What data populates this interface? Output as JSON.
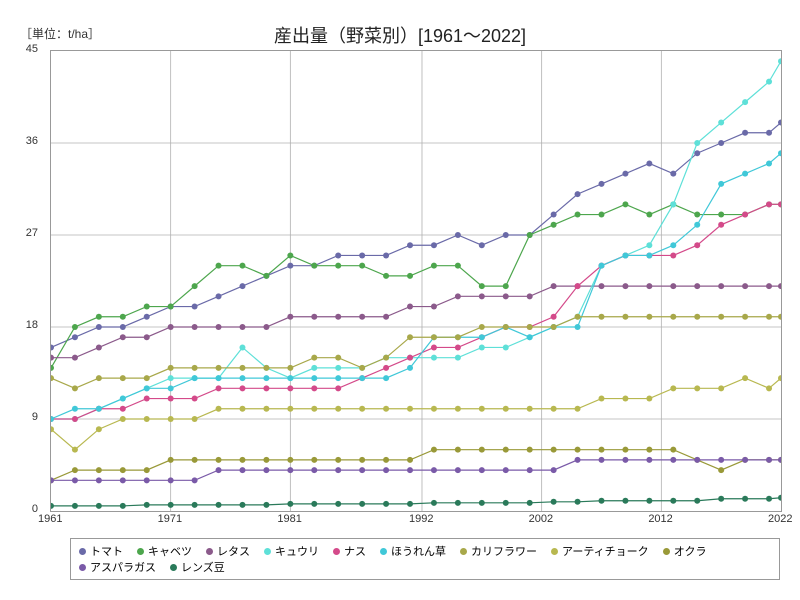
{
  "unit_label": "［単位：t/ha］",
  "title": "産出量（野菜別）[1961～2022]",
  "chart": {
    "type": "line",
    "background_color": "#ffffff",
    "grid_color": "#b0b0b0",
    "border_color": "#999999",
    "xlim": [
      1961,
      2022
    ],
    "ylim": [
      0,
      45
    ],
    "ytick_step": 9,
    "yticks": [
      0,
      9,
      18,
      27,
      36,
      45
    ],
    "xticks": [
      1961,
      1971,
      1981,
      1992,
      2002,
      2012,
      2022
    ],
    "title_fontsize": 18,
    "label_fontsize": 11,
    "marker_size": 3,
    "line_width": 1.2
  },
  "series": [
    {
      "name": "トマト",
      "color": "#6a6aa8",
      "years": [
        1961,
        1963,
        1965,
        1967,
        1969,
        1971,
        1973,
        1975,
        1977,
        1979,
        1981,
        1983,
        1985,
        1987,
        1989,
        1991,
        1993,
        1995,
        1997,
        1999,
        2001,
        2003,
        2005,
        2007,
        2009,
        2011,
        2013,
        2015,
        2017,
        2019,
        2021,
        2022
      ],
      "values": [
        16,
        17,
        18,
        18,
        19,
        20,
        20,
        21,
        22,
        23,
        24,
        24,
        25,
        25,
        25,
        26,
        26,
        27,
        26,
        27,
        27,
        29,
        31,
        32,
        33,
        34,
        33,
        35,
        36,
        37,
        37,
        38
      ]
    },
    {
      "name": "キャベツ",
      "color": "#4da64d",
      "years": [
        1961,
        1963,
        1965,
        1967,
        1969,
        1971,
        1973,
        1975,
        1977,
        1979,
        1981,
        1983,
        1985,
        1987,
        1989,
        1991,
        1993,
        1995,
        1997,
        1999,
        2001,
        2003,
        2005,
        2007,
        2009,
        2011,
        2013,
        2015,
        2017,
        2019,
        2021,
        2022
      ],
      "values": [
        14,
        18,
        19,
        19,
        20,
        20,
        22,
        24,
        24,
        23,
        25,
        24,
        24,
        24,
        23,
        23,
        24,
        24,
        22,
        22,
        27,
        28,
        29,
        29,
        30,
        29,
        30,
        29,
        29,
        29,
        30,
        30
      ]
    },
    {
      "name": "レタス",
      "color": "#8b5a8b",
      "years": [
        1961,
        1963,
        1965,
        1967,
        1969,
        1971,
        1973,
        1975,
        1977,
        1979,
        1981,
        1983,
        1985,
        1987,
        1989,
        1991,
        1993,
        1995,
        1997,
        1999,
        2001,
        2003,
        2005,
        2007,
        2009,
        2011,
        2013,
        2015,
        2017,
        2019,
        2021,
        2022
      ],
      "values": [
        15,
        15,
        16,
        17,
        17,
        18,
        18,
        18,
        18,
        18,
        19,
        19,
        19,
        19,
        19,
        20,
        20,
        21,
        21,
        21,
        21,
        22,
        22,
        22,
        22,
        22,
        22,
        22,
        22,
        22,
        22,
        22
      ]
    },
    {
      "name": "キュウリ",
      "color": "#5ee0d8",
      "years": [
        1961,
        1963,
        1965,
        1967,
        1969,
        1971,
        1973,
        1975,
        1977,
        1979,
        1981,
        1983,
        1985,
        1987,
        1989,
        1991,
        1993,
        1995,
        1997,
        1999,
        2001,
        2003,
        2005,
        2007,
        2009,
        2011,
        2013,
        2015,
        2017,
        2019,
        2021,
        2022
      ],
      "values": [
        9,
        9,
        10,
        11,
        12,
        13,
        13,
        13,
        16,
        14,
        13,
        14,
        14,
        14,
        15,
        15,
        15,
        15,
        16,
        16,
        17,
        18,
        19,
        24,
        25,
        26,
        30,
        36,
        38,
        40,
        42,
        44
      ]
    },
    {
      "name": "ナス",
      "color": "#d44a8a",
      "years": [
        1961,
        1963,
        1965,
        1967,
        1969,
        1971,
        1973,
        1975,
        1977,
        1979,
        1981,
        1983,
        1985,
        1987,
        1989,
        1991,
        1993,
        1995,
        1997,
        1999,
        2001,
        2003,
        2005,
        2007,
        2009,
        2011,
        2013,
        2015,
        2017,
        2019,
        2021,
        2022
      ],
      "values": [
        9,
        9,
        10,
        10,
        11,
        11,
        11,
        12,
        12,
        12,
        12,
        12,
        12,
        13,
        14,
        15,
        16,
        16,
        17,
        18,
        18,
        19,
        22,
        24,
        25,
        25,
        25,
        26,
        28,
        29,
        30,
        30
      ]
    },
    {
      "name": "ほうれん草",
      "color": "#40c8d8",
      "years": [
        1961,
        1963,
        1965,
        1967,
        1969,
        1971,
        1973,
        1975,
        1977,
        1979,
        1981,
        1983,
        1985,
        1987,
        1989,
        1991,
        1993,
        1995,
        1997,
        1999,
        2001,
        2003,
        2005,
        2007,
        2009,
        2011,
        2013,
        2015,
        2017,
        2019,
        2021,
        2022
      ],
      "values": [
        9,
        10,
        10,
        11,
        12,
        12,
        13,
        13,
        13,
        13,
        13,
        13,
        13,
        13,
        13,
        14,
        17,
        17,
        17,
        18,
        17,
        18,
        18,
        24,
        25,
        25,
        26,
        28,
        32,
        33,
        34,
        35
      ]
    },
    {
      "name": "カリフラワー",
      "color": "#a8a84a",
      "years": [
        1961,
        1963,
        1965,
        1967,
        1969,
        1971,
        1973,
        1975,
        1977,
        1979,
        1981,
        1983,
        1985,
        1987,
        1989,
        1991,
        1993,
        1995,
        1997,
        1999,
        2001,
        2003,
        2005,
        2007,
        2009,
        2011,
        2013,
        2015,
        2017,
        2019,
        2021,
        2022
      ],
      "values": [
        13,
        12,
        13,
        13,
        13,
        14,
        14,
        14,
        14,
        14,
        14,
        15,
        15,
        14,
        15,
        17,
        17,
        17,
        18,
        18,
        18,
        18,
        19,
        19,
        19,
        19,
        19,
        19,
        19,
        19,
        19,
        19
      ]
    },
    {
      "name": "アーティチョーク",
      "color": "#b8b850",
      "years": [
        1961,
        1963,
        1965,
        1967,
        1969,
        1971,
        1973,
        1975,
        1977,
        1979,
        1981,
        1983,
        1985,
        1987,
        1989,
        1991,
        1993,
        1995,
        1997,
        1999,
        2001,
        2003,
        2005,
        2007,
        2009,
        2011,
        2013,
        2015,
        2017,
        2019,
        2021,
        2022
      ],
      "values": [
        8,
        6,
        8,
        9,
        9,
        9,
        9,
        10,
        10,
        10,
        10,
        10,
        10,
        10,
        10,
        10,
        10,
        10,
        10,
        10,
        10,
        10,
        10,
        11,
        11,
        11,
        12,
        12,
        12,
        13,
        12,
        13
      ]
    },
    {
      "name": "オクラ",
      "color": "#999938",
      "years": [
        1961,
        1963,
        1965,
        1967,
        1969,
        1971,
        1973,
        1975,
        1977,
        1979,
        1981,
        1983,
        1985,
        1987,
        1989,
        1991,
        1993,
        1995,
        1997,
        1999,
        2001,
        2003,
        2005,
        2007,
        2009,
        2011,
        2013,
        2015,
        2017,
        2019,
        2021,
        2022
      ],
      "values": [
        3,
        4,
        4,
        4,
        4,
        5,
        5,
        5,
        5,
        5,
        5,
        5,
        5,
        5,
        5,
        5,
        6,
        6,
        6,
        6,
        6,
        6,
        6,
        6,
        6,
        6,
        6,
        5,
        4,
        5,
        5,
        5
      ]
    },
    {
      "name": "アスパラガス",
      "color": "#7a5aa8",
      "years": [
        1961,
        1963,
        1965,
        1967,
        1969,
        1971,
        1973,
        1975,
        1977,
        1979,
        1981,
        1983,
        1985,
        1987,
        1989,
        1991,
        1993,
        1995,
        1997,
        1999,
        2001,
        2003,
        2005,
        2007,
        2009,
        2011,
        2013,
        2015,
        2017,
        2019,
        2021,
        2022
      ],
      "values": [
        3,
        3,
        3,
        3,
        3,
        3,
        3,
        4,
        4,
        4,
        4,
        4,
        4,
        4,
        4,
        4,
        4,
        4,
        4,
        4,
        4,
        4,
        5,
        5,
        5,
        5,
        5,
        5,
        5,
        5,
        5,
        5
      ]
    },
    {
      "name": "レンズ豆",
      "color": "#2a7a5a",
      "years": [
        1961,
        1963,
        1965,
        1967,
        1969,
        1971,
        1973,
        1975,
        1977,
        1979,
        1981,
        1983,
        1985,
        1987,
        1989,
        1991,
        1993,
        1995,
        1997,
        1999,
        2001,
        2003,
        2005,
        2007,
        2009,
        2011,
        2013,
        2015,
        2017,
        2019,
        2021,
        2022
      ],
      "values": [
        0.5,
        0.5,
        0.5,
        0.5,
        0.6,
        0.6,
        0.6,
        0.6,
        0.6,
        0.6,
        0.7,
        0.7,
        0.7,
        0.7,
        0.7,
        0.7,
        0.8,
        0.8,
        0.8,
        0.8,
        0.8,
        0.9,
        0.9,
        1,
        1,
        1,
        1,
        1,
        1.2,
        1.2,
        1.2,
        1.3
      ]
    }
  ]
}
